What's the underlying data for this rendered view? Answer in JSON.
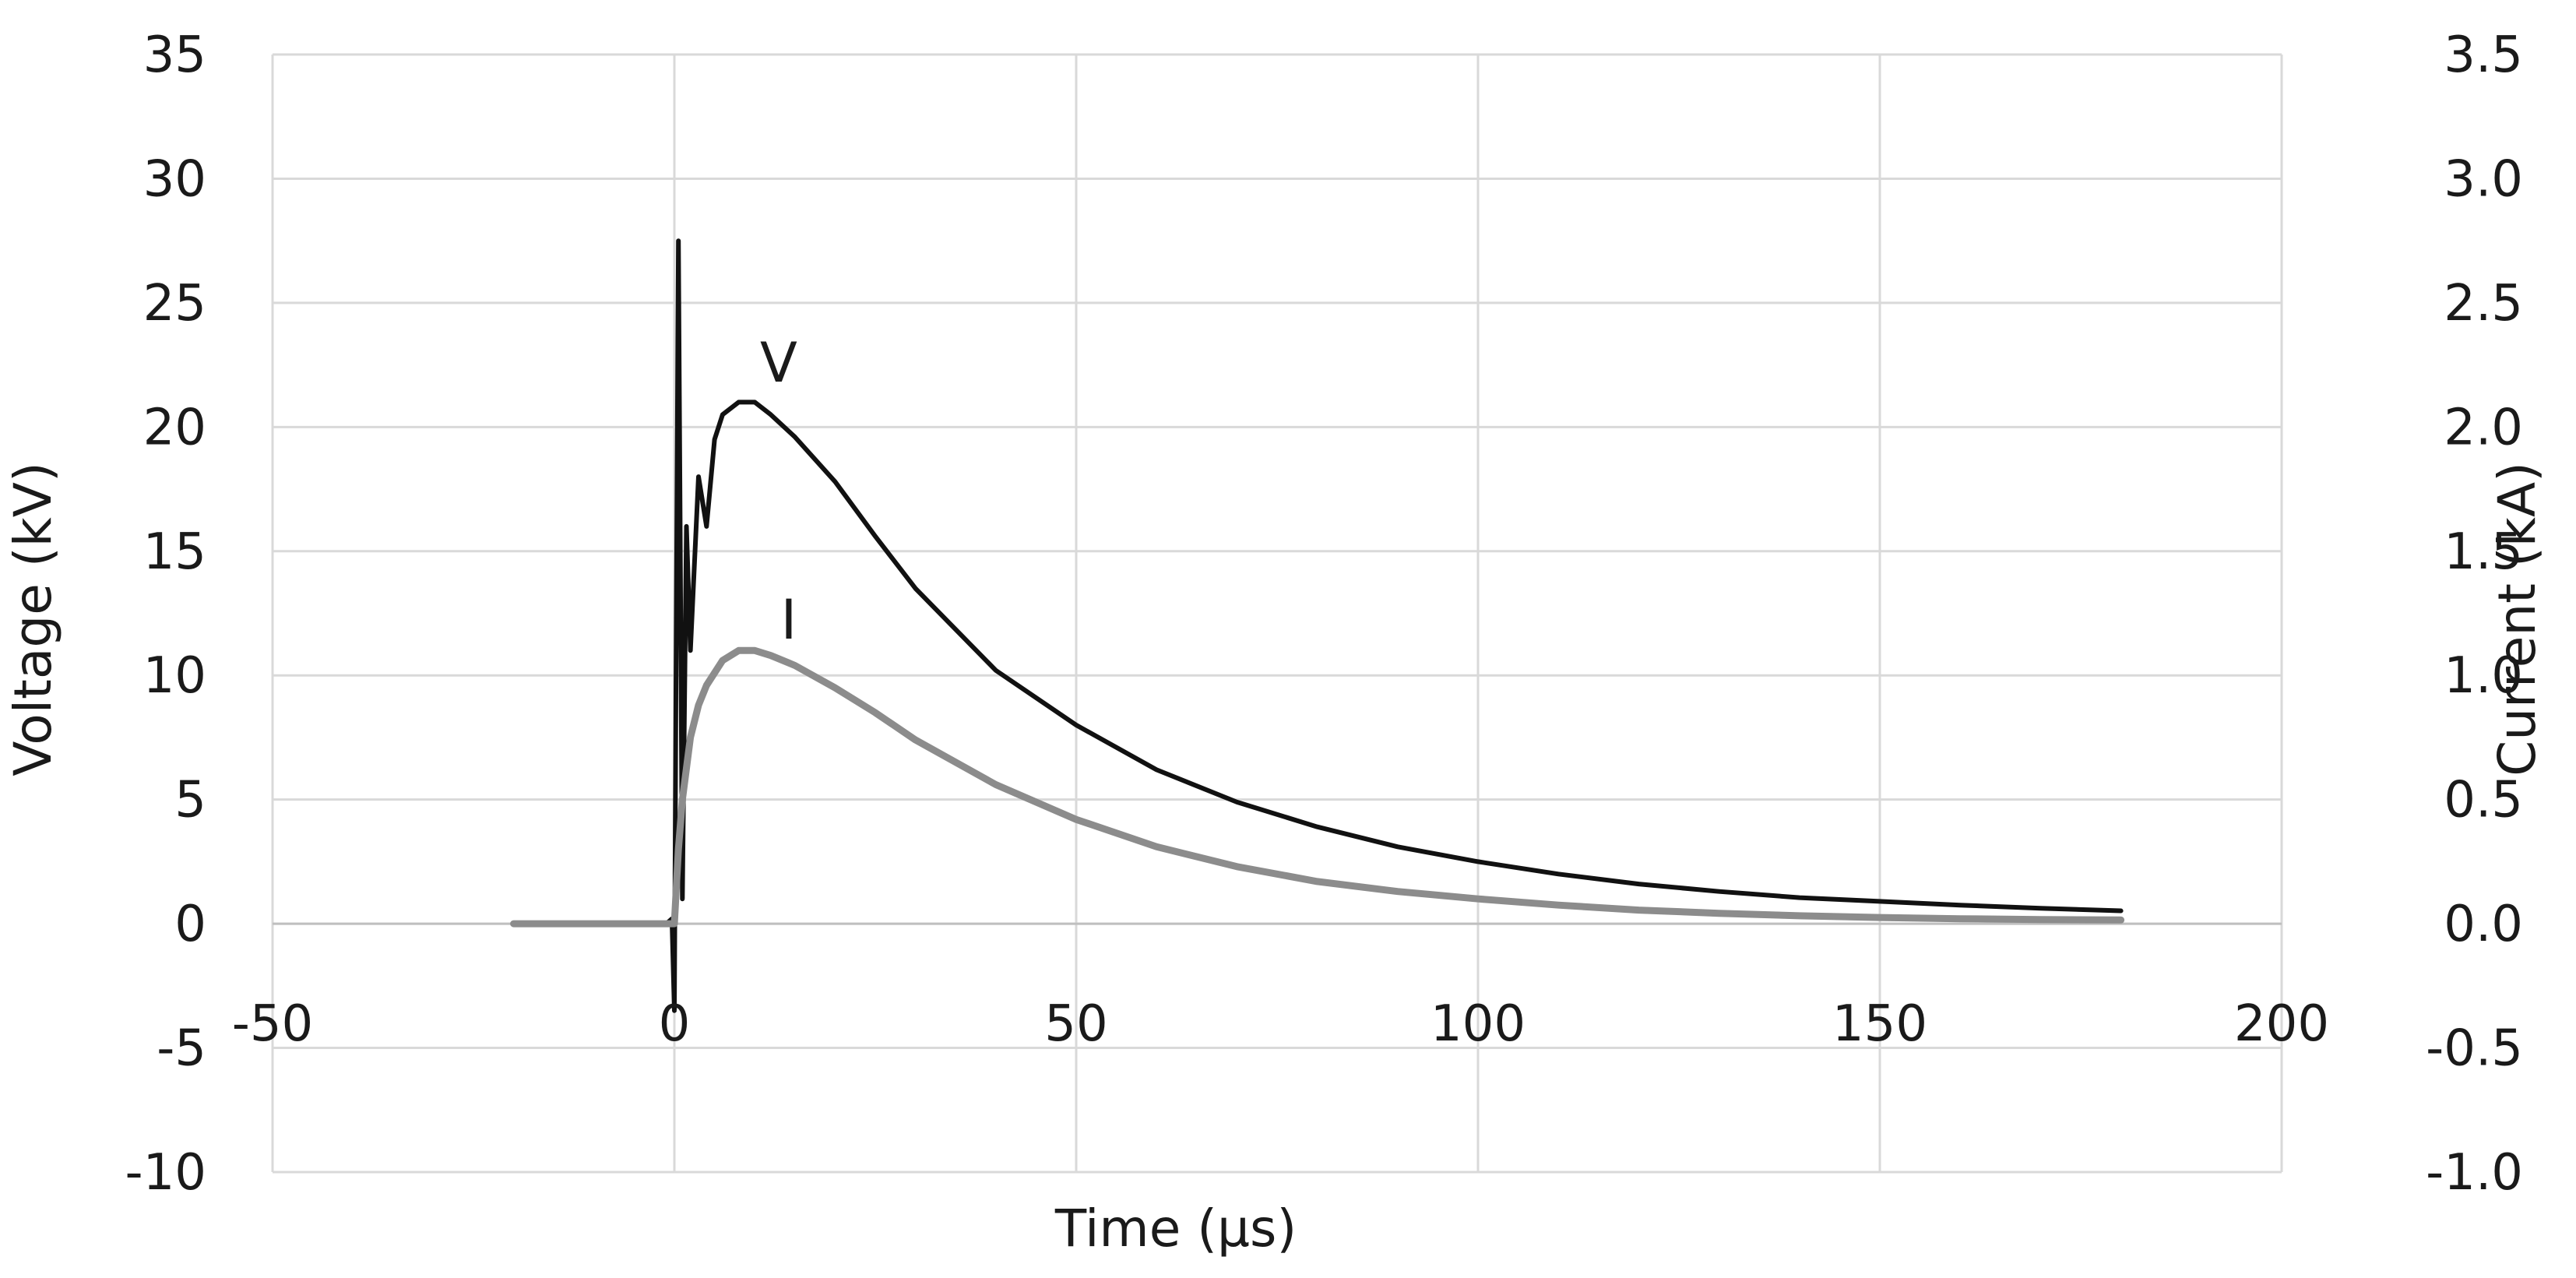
{
  "chart_data": {
    "type": "line",
    "title": "",
    "xlabel": "Time (μs)",
    "ylabel_left": "Voltage (kV)",
    "ylabel_right": "Current (kA)",
    "xlim": [
      -50,
      200
    ],
    "ylim_left": [
      -10,
      35
    ],
    "ylim_right": [
      -1.0,
      3.5
    ],
    "x_ticks": [
      "-50",
      "0",
      "50",
      "100",
      "150",
      "200"
    ],
    "y_ticks_left": [
      "-10",
      "-5",
      "0",
      "5",
      "10",
      "15",
      "20",
      "25",
      "30",
      "35"
    ],
    "y_ticks_right": [
      "-1.0",
      "-0.5",
      "0.0",
      "0.5",
      "1.0",
      "1.5",
      "2.0",
      "2.5",
      "3.0",
      "3.5"
    ],
    "grid": true,
    "legend": "none",
    "annotations": [
      "V",
      "I"
    ],
    "series": [
      {
        "name": "V",
        "axis": "left",
        "color": "#111111",
        "x": [
          -20,
          -10,
          -1,
          -0.3,
          0,
          0.2,
          0.5,
          1,
          1.5,
          2,
          3,
          4,
          5,
          6,
          8,
          10,
          12,
          15,
          20,
          25,
          30,
          40,
          50,
          60,
          70,
          80,
          90,
          100,
          110,
          120,
          130,
          140,
          150,
          160,
          170,
          180
        ],
        "y": [
          0,
          0,
          0,
          0.2,
          -3.5,
          10,
          27.5,
          1,
          16,
          11,
          18,
          16,
          19.5,
          20.5,
          21,
          21,
          20.5,
          19.6,
          17.8,
          15.6,
          13.5,
          10.2,
          8.0,
          6.2,
          4.9,
          3.9,
          3.1,
          2.5,
          2.0,
          1.6,
          1.3,
          1.05,
          0.9,
          0.75,
          0.62,
          0.52
        ]
      },
      {
        "name": "I",
        "axis": "right",
        "color": "#8c8c8c",
        "x": [
          -20,
          -10,
          -1,
          0,
          0.5,
          1,
          2,
          3,
          4,
          6,
          8,
          10,
          12,
          15,
          20,
          25,
          30,
          40,
          50,
          60,
          70,
          80,
          90,
          100,
          110,
          120,
          130,
          140,
          150,
          160,
          170,
          180
        ],
        "y": [
          0,
          0,
          0,
          0,
          0.3,
          0.5,
          0.75,
          0.88,
          0.96,
          1.06,
          1.1,
          1.1,
          1.08,
          1.04,
          0.95,
          0.85,
          0.74,
          0.56,
          0.42,
          0.31,
          0.23,
          0.17,
          0.13,
          0.1,
          0.075,
          0.055,
          0.042,
          0.032,
          0.025,
          0.02,
          0.017,
          0.015
        ]
      }
    ]
  }
}
